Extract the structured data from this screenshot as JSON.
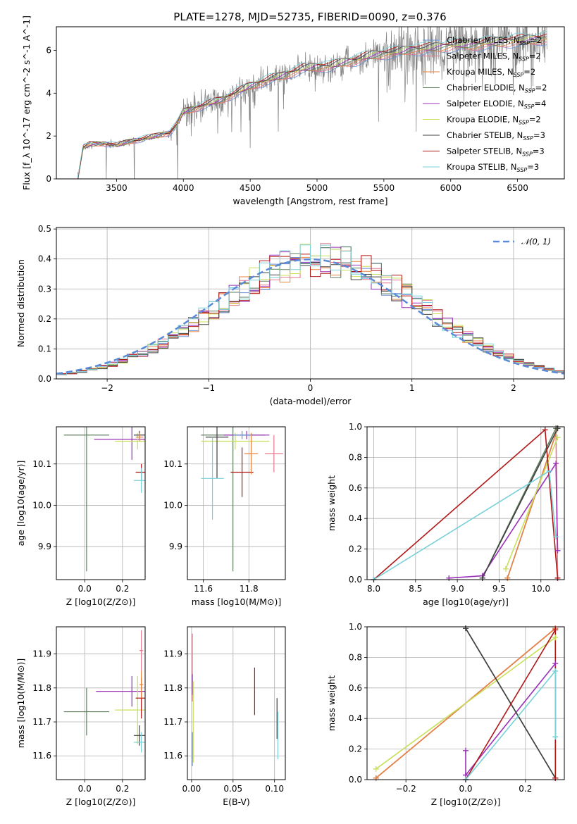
{
  "figure": {
    "title": "PLATE=1278, MJD=52735, FIBERID=0090, z=0.376"
  },
  "series_colors": {
    "Chabrier MILES": "#6a8fd8",
    "Salpeter MILES": "#e8778d",
    "Kroupa MILES": "#e8823c",
    "Chabrier ELODIE": "#5f7f5f",
    "Salpeter ELODIE": "#9b30b8",
    "Kroupa ELODIE": "#c8e05a",
    "Chabrier STELIB": "#404040",
    "Salpeter STELIB": "#b01818",
    "Kroupa STELIB": "#78d0d8",
    "data": "#808080",
    "normal": "#5b8bd8"
  },
  "chart_data": [
    {
      "id": "spectrum",
      "type": "line",
      "xlabel": "wavelength [Angstrom, rest frame]",
      "ylabel": "Flux [f_λ 10^-17 erg cm^-2 s^-1 A^-1]",
      "xlim": [
        3050,
        6850
      ],
      "ylim": [
        0,
        7.1
      ],
      "xticks": [
        3500,
        4000,
        4500,
        5000,
        5500,
        6000,
        6500
      ],
      "yticks": [
        0,
        2,
        4,
        6
      ],
      "grid": false,
      "legend": "right",
      "legend_entries": [
        {
          "name": "Chabrier MILES",
          "nssp": "2"
        },
        {
          "name": "Salpeter MILES",
          "nssp": "2"
        },
        {
          "name": "Kroupa MILES",
          "nssp": "2"
        },
        {
          "name": "Chabrier ELODIE",
          "nssp": "2"
        },
        {
          "name": "Salpeter ELODIE",
          "nssp": "4"
        },
        {
          "name": "Kroupa ELODIE",
          "nssp": "2"
        },
        {
          "name": "Chabrier STELIB",
          "nssp": "3"
        },
        {
          "name": "Salpeter STELIB",
          "nssp": "3"
        },
        {
          "name": "Kroupa STELIB",
          "nssp": "3"
        }
      ],
      "model_continuum": {
        "x": [
          3210,
          3250,
          3300,
          3400,
          3500,
          3600,
          3700,
          3800,
          3900,
          3950,
          4000,
          4100,
          4200,
          4300,
          4400,
          4500,
          4600,
          4700,
          4800,
          4900,
          5000,
          5100,
          5200,
          5300,
          5400,
          5500,
          5600,
          5700,
          5800,
          5900,
          6000,
          6100,
          6200,
          6300,
          6400,
          6500,
          6600,
          6700
        ],
        "y": [
          0.0,
          1.45,
          1.6,
          1.65,
          1.55,
          1.75,
          1.85,
          2.0,
          2.15,
          2.5,
          3.1,
          3.3,
          3.5,
          3.7,
          4.0,
          4.3,
          4.5,
          4.7,
          4.9,
          5.1,
          5.2,
          5.2,
          5.4,
          5.5,
          5.7,
          5.8,
          5.85,
          6.0,
          6.0,
          6.1,
          6.15,
          6.2,
          6.2,
          6.3,
          6.35,
          6.4,
          6.45,
          6.5
        ]
      }
    },
    {
      "id": "residual_hist",
      "type": "line",
      "xlabel": "(data-model)/error",
      "ylabel": "Normed distribution",
      "xlim": [
        -2.5,
        2.5
      ],
      "ylim": [
        0,
        0.505
      ],
      "xticks": [
        -2,
        -1,
        0,
        1,
        2
      ],
      "yticks": [
        0.0,
        0.1,
        0.2,
        0.3,
        0.4,
        0.5
      ],
      "grid": true,
      "legend": "top-right",
      "legend_entries": [
        "𝒩(0, 1)"
      ],
      "bin_width": 0.1,
      "normal_curve": {
        "mean": 0,
        "sigma": 1
      }
    },
    {
      "id": "age_vs_Z",
      "type": "scatter",
      "xlabel": "Z [log10(Z/Z⊙)]",
      "ylabel": "age [log10(age/yr)]",
      "xlim": [
        -0.15,
        0.32
      ],
      "ylim": [
        9.82,
        10.19
      ],
      "xticks": [
        0.0,
        0.2
      ],
      "yticks": [
        9.9,
        10.0,
        10.1
      ],
      "grid": true,
      "points": [
        {
          "s": "Chabrier ELODIE",
          "x": 0.01,
          "xerr": 0.12,
          "y": 10.17,
          "yerr": 0.33
        },
        {
          "s": "Salpeter ELODIE",
          "x": 0.25,
          "xerr": 0.2,
          "y": 10.16,
          "yerr": 0.05
        },
        {
          "s": "Kroupa ELODIE",
          "x": 0.28,
          "xerr": 0.12,
          "y": 10.155,
          "yerr": 0.02
        },
        {
          "s": "Chabrier STELIB",
          "x": 0.29,
          "xerr": 0.03,
          "y": 10.17,
          "yerr": 0.01
        },
        {
          "s": "Salpeter STELIB",
          "x": 0.3,
          "xerr": 0.03,
          "y": 10.08,
          "yerr": 0.02
        },
        {
          "s": "Kroupa STELIB",
          "x": 0.3,
          "xerr": 0.04,
          "y": 10.06,
          "yerr": 0.03
        },
        {
          "s": "Kroupa MILES",
          "x": 0.29,
          "xerr": 0.02,
          "y": 10.165,
          "yerr": 0.01
        }
      ]
    },
    {
      "id": "age_vs_mass",
      "type": "scatter",
      "xlabel": "mass [log10(M/M⊙)]",
      "ylabel": "",
      "xlim": [
        11.53,
        11.96
      ],
      "ylim": [
        9.82,
        10.19
      ],
      "xticks": [
        11.6,
        11.8
      ],
      "yticks": [
        9.9,
        10.0,
        10.1
      ],
      "grid": true,
      "points": [
        {
          "s": "Chabrier ELODIE",
          "x": 11.73,
          "xerr": 0.14,
          "y": 10.17,
          "yerr": 0.33
        },
        {
          "s": "Salpeter ELODIE",
          "x": 11.79,
          "xerr": 0.1,
          "y": 10.17,
          "yerr": 0.01
        },
        {
          "s": "Kroupa ELODIE",
          "x": 11.74,
          "xerr": 0.15,
          "y": 10.155,
          "yerr": 0.02
        },
        {
          "s": "Chabrier STELIB",
          "x": 11.66,
          "xerr": 0.05,
          "y": 10.165,
          "yerr": 0.1
        },
        {
          "s": "Salpeter STELIB",
          "x": 11.77,
          "xerr": 0.05,
          "y": 10.08,
          "yerr": 0.06
        },
        {
          "s": "Kroupa STELIB",
          "x": 11.64,
          "xerr": 0.05,
          "y": 10.065,
          "yerr": 0.1
        },
        {
          "s": "Salpeter MILES",
          "x": 11.91,
          "xerr": 0.04,
          "y": 10.125,
          "yerr": 0.045
        },
        {
          "s": "Kroupa MILES",
          "x": 11.81,
          "xerr": 0.03,
          "y": 10.125,
          "yerr": 0.05
        },
        {
          "s": "Chabrier MILES",
          "x": 11.77,
          "xerr": 0.04,
          "y": 10.17,
          "yerr": 0.01
        }
      ]
    },
    {
      "id": "weight_vs_age",
      "type": "line",
      "xlabel": "age [log10(age/yr)]",
      "ylabel": "mass weight",
      "xlim": [
        7.92,
        10.28
      ],
      "ylim": [
        0,
        1.0
      ],
      "xticks": [
        8.0,
        8.5,
        9.0,
        9.5,
        10.0
      ],
      "yticks": [
        0.0,
        0.2,
        0.4,
        0.6,
        0.8,
        1.0
      ],
      "grid": true,
      "series": [
        {
          "s": "Chabrier MILES",
          "x": [
            9.6,
            10.2
          ],
          "y": [
            0.01,
            0.99
          ]
        },
        {
          "s": "Salpeter MILES",
          "x": [
            10.2,
            10.18
          ],
          "y": [
            0.01,
            0.99
          ]
        },
        {
          "s": "Kroupa MILES",
          "x": [
            9.6,
            10.2
          ],
          "y": [
            0.01,
            0.99
          ]
        },
        {
          "s": "Chabrier ELODIE",
          "x": [
            9.3,
            10.18
          ],
          "y": [
            0.01,
            0.99
          ]
        },
        {
          "s": "Salpeter ELODIE",
          "x": [
            8.9,
            9.3,
            10.18,
            10.2
          ],
          "y": [
            0.01,
            0.025,
            0.76,
            0.19
          ]
        },
        {
          "s": "Kroupa ELODIE",
          "x": [
            9.58,
            10.2
          ],
          "y": [
            0.07,
            0.93
          ]
        },
        {
          "s": "Chabrier STELIB",
          "x": [
            9.3,
            10.2
          ],
          "y": [
            0.01,
            0.99
          ]
        },
        {
          "s": "Salpeter STELIB",
          "x": [
            8.0,
            10.05,
            10.2
          ],
          "y": [
            0.0,
            0.98,
            0.01
          ]
        },
        {
          "s": "Kroupa STELIB",
          "x": [
            8.0,
            10.1,
            10.18
          ],
          "y": [
            0.0,
            0.71,
            0.28
          ]
        }
      ]
    },
    {
      "id": "mass_vs_Z",
      "type": "scatter",
      "xlabel": "Z [log10(Z/Z⊙)]",
      "ylabel": "mass [log10(M/M⊙)]",
      "xlim": [
        -0.15,
        0.32
      ],
      "ylim": [
        11.53,
        11.98
      ],
      "xticks": [
        0.0,
        0.2
      ],
      "yticks": [
        11.6,
        11.7,
        11.8,
        11.9
      ],
      "grid": true,
      "points": [
        {
          "s": "Chabrier ELODIE",
          "x": 0.01,
          "xerr": 0.12,
          "y": 11.73,
          "yerr": 0.07
        },
        {
          "s": "Salpeter ELODIE",
          "x": 0.25,
          "xerr": 0.19,
          "y": 11.79,
          "yerr": 0.045
        },
        {
          "s": "Kroupa ELODIE",
          "x": 0.28,
          "xerr": 0.12,
          "y": 11.735,
          "yerr": 0.1
        },
        {
          "s": "Chabrier STELIB",
          "x": 0.29,
          "xerr": 0.03,
          "y": 11.66,
          "yerr": 0.03
        },
        {
          "s": "Salpeter STELIB",
          "x": 0.3,
          "xerr": 0.03,
          "y": 11.77,
          "yerr": 0.06
        },
        {
          "s": "Kroupa STELIB",
          "x": 0.3,
          "xerr": 0.04,
          "y": 11.64,
          "yerr": 0.03
        },
        {
          "s": "Salpeter MILES",
          "x": 0.3,
          "xerr": 0.01,
          "y": 11.91,
          "yerr": 0.06
        },
        {
          "s": "Kroupa MILES",
          "x": 0.3,
          "xerr": 0.01,
          "y": 11.81,
          "yerr": 0.04
        }
      ]
    },
    {
      "id": "mass_vs_EBV",
      "type": "scatter",
      "xlabel": "E(B-V)",
      "ylabel": "",
      "xlim": [
        -0.005,
        0.113
      ],
      "ylim": [
        11.53,
        11.98
      ],
      "xticks": [
        0.0,
        0.05,
        0.1
      ],
      "yticks": [
        11.6,
        11.7,
        11.8,
        11.9
      ],
      "grid": true,
      "points": [
        {
          "s": "Salpeter MILES",
          "x": 0.001,
          "xerr": 0.0,
          "y": 11.86,
          "yerr": 0.1
        },
        {
          "s": "Salpeter ELODIE",
          "x": 0.001,
          "xerr": 0.0,
          "y": 11.81,
          "yerr": 0.03
        },
        {
          "s": "Kroupa ELODIE",
          "x": 0.002,
          "xerr": 0.0,
          "y": 11.7,
          "yerr": 0.12
        },
        {
          "s": "Chabrier MILES",
          "x": 0.001,
          "xerr": 0.0,
          "y": 11.62,
          "yerr": 0.05
        },
        {
          "s": "Salpeter STELIB",
          "x": 0.076,
          "xerr": 0.0,
          "y": 11.79,
          "yerr": 0.07
        },
        {
          "s": "Chabrier STELIB",
          "x": 0.103,
          "xerr": 0.0,
          "y": 11.71,
          "yerr": 0.06
        },
        {
          "s": "Kroupa STELIB",
          "x": 0.104,
          "xerr": 0.0,
          "y": 11.66,
          "yerr": 0.07
        }
      ]
    },
    {
      "id": "weight_vs_Z",
      "type": "line",
      "xlabel": "Z [log10(Z/Z⊙)]",
      "ylabel": "mass weight",
      "xlim": [
        -0.33,
        0.33
      ],
      "ylim": [
        0,
        1.0
      ],
      "xticks": [
        -0.2,
        0.0,
        0.2
      ],
      "yticks": [
        0.0,
        0.2,
        0.4,
        0.6,
        0.8,
        1.0
      ],
      "grid": true,
      "series": [
        {
          "s": "Chabrier MILES",
          "x": [
            -0.3,
            0.3
          ],
          "y": [
            0.01,
            0.99
          ]
        },
        {
          "s": "Salpeter MILES",
          "x": [
            -0.3,
            0.3
          ],
          "y": [
            0.01,
            0.99
          ]
        },
        {
          "s": "Kroupa MILES",
          "x": [
            -0.3,
            0.3
          ],
          "y": [
            0.01,
            0.99
          ]
        },
        {
          "s": "Chabrier ELODIE",
          "x": [
            0.0,
            0.3
          ],
          "y": [
            0.99,
            0.01
          ]
        },
        {
          "s": "Salpeter ELODIE",
          "x": [
            0.0,
            0.0,
            0.3,
            0.3
          ],
          "y": [
            0.19,
            0.03,
            0.76,
            0.01
          ]
        },
        {
          "s": "Kroupa ELODIE",
          "x": [
            -0.3,
            0.3
          ],
          "y": [
            0.07,
            0.93
          ]
        },
        {
          "s": "Chabrier STELIB",
          "x": [
            0.0,
            0.3
          ],
          "y": [
            0.99,
            0.01
          ]
        },
        {
          "s": "Salpeter STELIB",
          "x": [
            0.0,
            0.3,
            0.3
          ],
          "y": [
            0.0,
            0.98,
            0.01
          ]
        },
        {
          "s": "Kroupa STELIB",
          "x": [
            0.0,
            0.3,
            0.3
          ],
          "y": [
            0.0,
            0.71,
            0.28
          ]
        }
      ]
    }
  ]
}
